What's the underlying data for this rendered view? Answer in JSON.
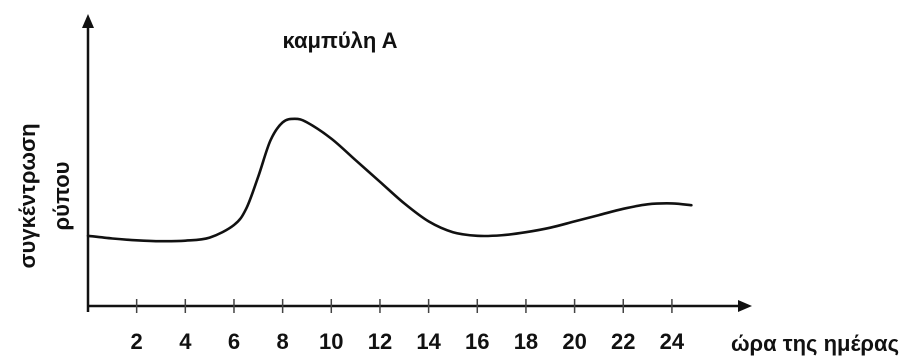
{
  "chart_data": {
    "type": "line",
    "title": "καμπύλη Α",
    "xlabel": "ώρα της ημέρας",
    "ylabel": [
      "συγκέντρωση",
      "ρύπου"
    ],
    "x_ticks": [
      2,
      4,
      6,
      8,
      10,
      12,
      14,
      16,
      18,
      20,
      22,
      24
    ],
    "xlim": [
      0,
      25.3
    ],
    "ylim": [
      0,
      100
    ],
    "y_ticks_labeled": false,
    "grid": false,
    "legend": "none",
    "series": [
      {
        "x": [
          0,
          1,
          2,
          3,
          4,
          5,
          6,
          6.5,
          7,
          7.5,
          8,
          8.5,
          9,
          10,
          11,
          12,
          13,
          14,
          15,
          16,
          17,
          18,
          19,
          20,
          21,
          22,
          23,
          24,
          24.8
        ],
        "y": [
          29,
          27.5,
          26.5,
          26,
          26.3,
          28,
          35,
          44,
          62,
          82,
          92,
          94,
          92,
          83,
          71,
          59,
          47,
          37,
          31,
          29,
          29.3,
          31,
          33.5,
          37,
          40.5,
          44,
          46.5,
          47,
          46
        ]
      }
    ],
    "colors": {
      "line": "#111111",
      "axis": "#111111"
    }
  }
}
